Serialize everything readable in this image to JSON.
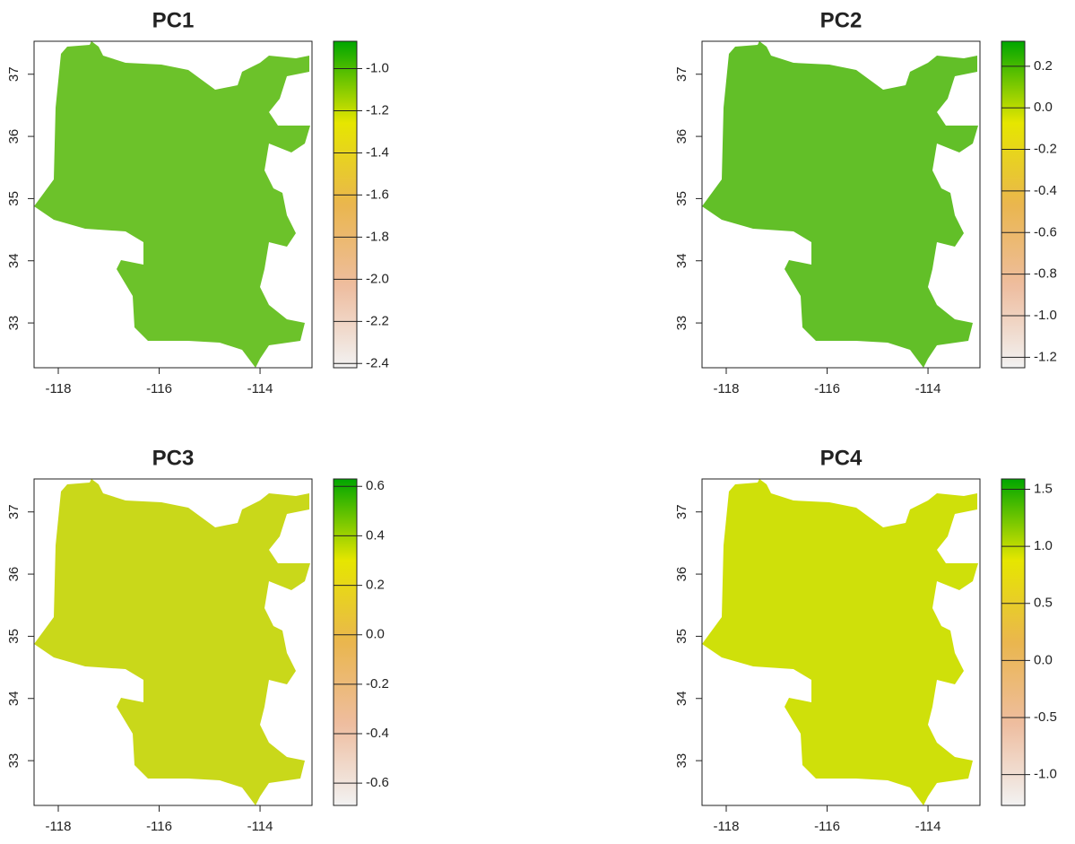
{
  "chart_data": [
    {
      "type": "raster",
      "title": "PC1",
      "color": "#6cc22a",
      "xlim": [
        -118.48,
        -112.97
      ],
      "xticks": [
        -118,
        -116,
        -114
      ],
      "ylim": [
        32.28,
        37.53
      ],
      "yticks": [
        33,
        34,
        35,
        36,
        37
      ],
      "zlim": [
        -2.42,
        -0.87
      ],
      "zticks": [
        {
          "value": -1,
          "label": "-1.0"
        },
        -1.2,
        -1.4,
        -1.6,
        -1.8,
        {
          "value": -2,
          "label": "-2.0"
        },
        -2.2,
        -2.4
      ],
      "colors": [
        "#f2f2f2",
        "#eebd9f",
        "#eab64e",
        "#e6e600",
        "#00a600"
      ]
    },
    {
      "type": "raster",
      "title": "PC2",
      "color": "#62bf28",
      "xlim": [
        -118.48,
        -112.97
      ],
      "xticks": [
        -118,
        -116,
        -114
      ],
      "ylim": [
        32.28,
        37.53
      ],
      "yticks": [
        33,
        34,
        35,
        36,
        37
      ],
      "zlim": [
        -1.25,
        0.32
      ],
      "zticks": [
        0.2,
        {
          "value": 0,
          "label": "0.0"
        },
        -0.2,
        -0.4,
        -0.6,
        -0.8,
        {
          "value": -1,
          "label": "-1.0"
        },
        -1.2
      ],
      "colors": [
        "#f2f2f2",
        "#eebd9f",
        "#eab64e",
        "#e6e600",
        "#00a600"
      ]
    },
    {
      "type": "raster",
      "title": "PC3",
      "color": "#c9d81a",
      "xlim": [
        -118.48,
        -112.97
      ],
      "xticks": [
        -118,
        -116,
        -114
      ],
      "ylim": [
        32.28,
        37.53
      ],
      "yticks": [
        33,
        34,
        35,
        36,
        37
      ],
      "zlim": [
        -0.69,
        0.63
      ],
      "zticks": [
        0.6,
        0.4,
        0.2,
        {
          "value": 0,
          "label": "0.0"
        },
        -0.2,
        -0.4,
        -0.6
      ],
      "colors": [
        "#f2f2f2",
        "#eebd9f",
        "#eab64e",
        "#e6e600",
        "#00a600"
      ]
    },
    {
      "type": "raster",
      "title": "PC4",
      "color": "#cfe00a",
      "xlim": [
        -118.48,
        -112.97
      ],
      "xticks": [
        -118,
        -116,
        -114
      ],
      "ylim": [
        32.28,
        37.53
      ],
      "yticks": [
        33,
        34,
        35,
        36,
        37
      ],
      "zlim": [
        -1.27,
        1.59
      ],
      "zticks": [
        1.5,
        {
          "value": 1,
          "label": "1.0"
        },
        0.5,
        {
          "value": 0,
          "label": "0.0"
        },
        -0.5,
        {
          "value": -1,
          "label": "-1.0"
        }
      ],
      "colors": [
        "#f2f2f2",
        "#eebd9f",
        "#eab64e",
        "#e6e600",
        "#00a600"
      ]
    }
  ]
}
